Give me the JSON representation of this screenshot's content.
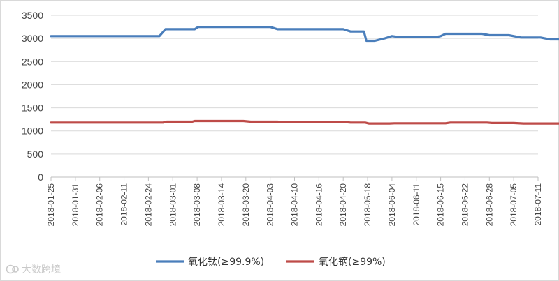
{
  "chart_data": {
    "type": "line",
    "title": "",
    "xlabel": "",
    "ylabel": "",
    "ylim": [
      0,
      3500
    ],
    "yticks": [
      0,
      500,
      1000,
      1500,
      2000,
      2500,
      3000,
      3500
    ],
    "grid": "horizontal",
    "legend_position": "bottom",
    "x": [
      "2018-01-25",
      "2018-01-31",
      "2018-02-06",
      "2018-02-11",
      "2018-02-24",
      "2018-03-01",
      "2018-03-08",
      "2018-03-14",
      "2018-03-20",
      "2018-04-03",
      "2018-04-10",
      "2018-04-16",
      "2018-04-20",
      "2018-05-18",
      "2018-06-04",
      "2018-06-11",
      "2018-06-15",
      "2018-06-22",
      "2018-06-28",
      "2018-07-05",
      "2018-07-11"
    ],
    "series": [
      {
        "name": "氧化钛(≥99.9%)",
        "color": "#4a7ebb",
        "points": [
          [
            0,
            3050
          ],
          [
            4.45,
            3050
          ],
          [
            4.7,
            3200
          ],
          [
            5.9,
            3200
          ],
          [
            6.05,
            3250
          ],
          [
            9.0,
            3250
          ],
          [
            9.3,
            3200
          ],
          [
            12.0,
            3200
          ],
          [
            12.3,
            3150
          ],
          [
            12.85,
            3150
          ],
          [
            12.95,
            2950
          ],
          [
            13.3,
            2950
          ],
          [
            13.7,
            3000
          ],
          [
            14.0,
            3050
          ],
          [
            14.3,
            3030
          ],
          [
            15.8,
            3030
          ],
          [
            16.0,
            3050
          ],
          [
            16.2,
            3100
          ],
          [
            17.7,
            3100
          ],
          [
            18.0,
            3070
          ],
          [
            18.8,
            3070
          ],
          [
            19.3,
            3020
          ],
          [
            20.1,
            3020
          ],
          [
            20.5,
            2980
          ],
          [
            20.85,
            2980
          ]
        ]
      },
      {
        "name": "氧化镝(≥99%)",
        "color": "#be4b48",
        "points": [
          [
            0,
            1180
          ],
          [
            4.6,
            1180
          ],
          [
            4.75,
            1200
          ],
          [
            5.8,
            1200
          ],
          [
            5.9,
            1215
          ],
          [
            7.9,
            1215
          ],
          [
            8.2,
            1200
          ],
          [
            9.3,
            1200
          ],
          [
            9.5,
            1190
          ],
          [
            12.1,
            1190
          ],
          [
            12.3,
            1180
          ],
          [
            12.9,
            1180
          ],
          [
            13.05,
            1160
          ],
          [
            13.9,
            1160
          ],
          [
            14.1,
            1165
          ],
          [
            16.2,
            1165
          ],
          [
            16.4,
            1180
          ],
          [
            17.9,
            1180
          ],
          [
            18.1,
            1170
          ],
          [
            19.0,
            1170
          ],
          [
            19.4,
            1160
          ],
          [
            20.85,
            1160
          ]
        ]
      }
    ]
  },
  "watermark": {
    "text": "大数跨境"
  }
}
